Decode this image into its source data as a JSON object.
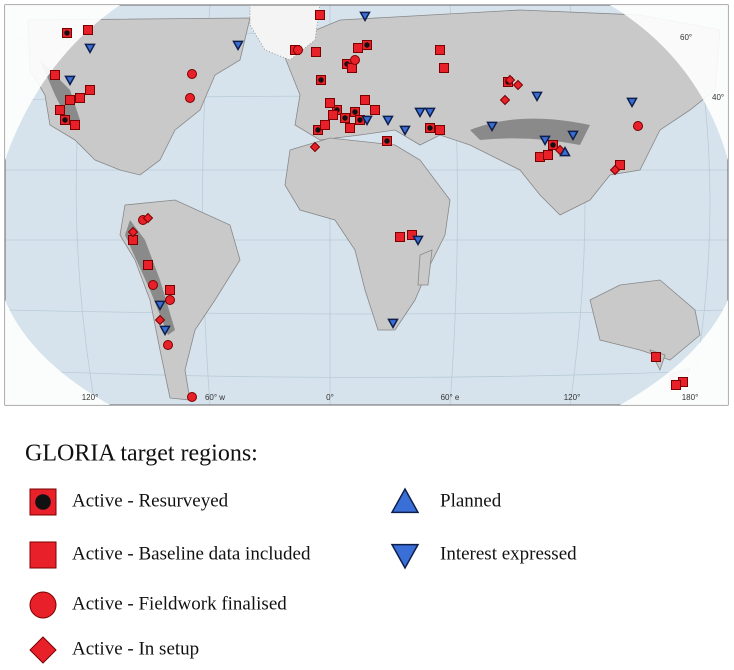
{
  "map": {
    "grid_labels": [
      "60°",
      "40°",
      "120°",
      "60° w",
      "0°",
      "60° e",
      "120°",
      "180°"
    ]
  },
  "legend": {
    "title": "GLORIA target regions:",
    "items": [
      "Active - Resurveyed",
      "Active - Baseline data included",
      "Active - Fieldwork finalised",
      "Active - In setup",
      "Planned",
      "Interest expressed"
    ]
  }
}
